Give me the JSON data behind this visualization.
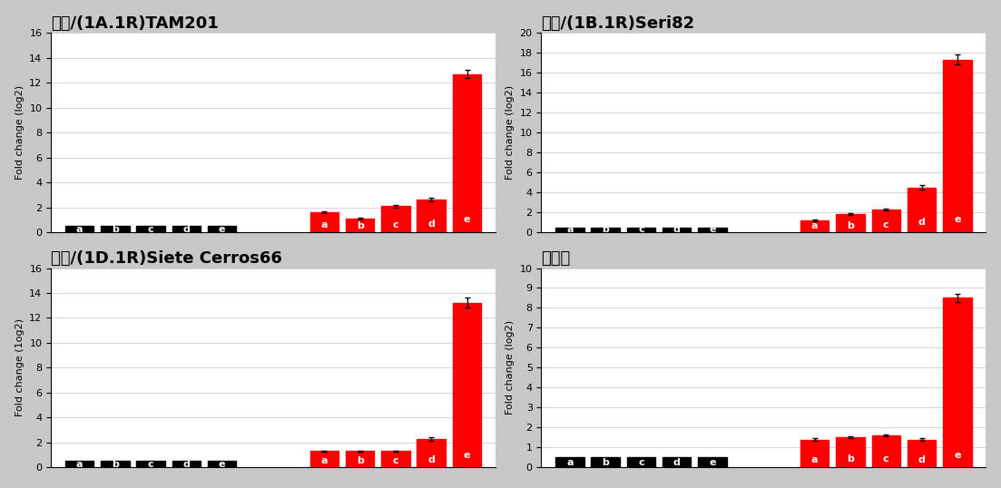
{
  "subplots": [
    {
      "title": "금강/(1A.1R)TAM201",
      "ylim": [
        0,
        16
      ],
      "yticks": [
        0,
        2,
        4,
        6,
        8,
        10,
        12,
        14,
        16
      ],
      "ylabel": "Fold change (log2)",
      "control_values": [
        0.5,
        0.5,
        0.5,
        0.5,
        0.5
      ],
      "treated_values": [
        1.6,
        1.1,
        2.1,
        2.6,
        12.7
      ],
      "control_errors": [
        0.05,
        0.05,
        0.05,
        0.05,
        0.05
      ],
      "treated_errors": [
        0.1,
        0.05,
        0.1,
        0.15,
        0.3
      ]
    },
    {
      "title": "금강/(1B.1R)Seri82",
      "ylim": [
        0,
        20
      ],
      "yticks": [
        0,
        2,
        4,
        6,
        8,
        10,
        12,
        14,
        16,
        18,
        20
      ],
      "ylabel": "Fold change (log2)",
      "control_values": [
        0.5,
        0.5,
        0.5,
        0.5,
        0.5
      ],
      "treated_values": [
        1.2,
        1.8,
        2.3,
        4.5,
        17.3
      ],
      "control_errors": [
        0.05,
        0.05,
        0.05,
        0.05,
        0.05
      ],
      "treated_errors": [
        0.1,
        0.1,
        0.1,
        0.2,
        0.5
      ]
    },
    {
      "title": "금강/(1D.1R)Siete Cerros66",
      "ylim": [
        0,
        16
      ],
      "yticks": [
        0,
        2,
        4,
        6,
        8,
        10,
        12,
        14,
        16
      ],
      "ylabel": "Fold change (1og2)",
      "control_values": [
        0.5,
        0.5,
        0.5,
        0.5,
        0.5
      ],
      "treated_values": [
        1.3,
        1.3,
        1.3,
        2.3,
        13.2
      ],
      "control_errors": [
        0.05,
        0.05,
        0.05,
        0.05,
        0.05
      ],
      "treated_errors": [
        0.05,
        0.05,
        0.05,
        0.15,
        0.4
      ]
    },
    {
      "title": "금강밀",
      "ylim": [
        0,
        10
      ],
      "yticks": [
        0,
        1,
        2,
        3,
        4,
        5,
        6,
        7,
        8,
        9,
        10
      ],
      "ylabel": "Fold change (log2)",
      "control_values": [
        0.5,
        0.5,
        0.5,
        0.5,
        0.5
      ],
      "treated_values": [
        1.4,
        1.5,
        1.6,
        1.4,
        8.5
      ],
      "control_errors": [
        0.05,
        0.05,
        0.05,
        0.05,
        0.05
      ],
      "treated_errors": [
        0.05,
        0.05,
        0.05,
        0.05,
        0.2
      ]
    }
  ],
  "gene_labels": [
    "a",
    "b",
    "c",
    "d",
    "e"
  ],
  "control_color": "#000000",
  "treated_color": "#ff0000",
  "bar_width": 0.6,
  "label_fontsize": 8,
  "title_fontsize": 13,
  "ylabel_fontsize": 8,
  "tick_fontsize": 8,
  "background_color": "#ffffff",
  "outer_background": "#c8c8c8"
}
